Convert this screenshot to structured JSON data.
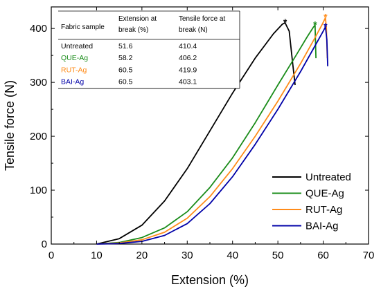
{
  "chart_data": {
    "type": "line",
    "xlabel": "Extension (%)",
    "ylabel": "Tensile force (N)",
    "xlim": [
      0,
      70
    ],
    "ylim": [
      0,
      440
    ],
    "xticks": [
      0,
      10,
      20,
      30,
      40,
      50,
      60,
      70
    ],
    "yticks": [
      0,
      100,
      200,
      300,
      400
    ],
    "grid": false,
    "legend_position": "bottom-right",
    "series": [
      {
        "name": "Untreated",
        "color": "#000000",
        "x": [
          10,
          15,
          20,
          25,
          30,
          35,
          40,
          45,
          49,
          51,
          51.6,
          52.5,
          53.2,
          53.8
        ],
        "y": [
          0,
          10,
          35,
          80,
          140,
          210,
          280,
          345,
          390,
          408,
          410.4,
          395,
          340,
          295
        ]
      },
      {
        "name": "QUE-Ag",
        "color": "#1a8c1a",
        "x": [
          10,
          15,
          20,
          25,
          30,
          35,
          40,
          45,
          50,
          54,
          56.5,
          57.8,
          58.2,
          58.4
        ],
        "y": [
          0,
          3,
          12,
          30,
          60,
          105,
          160,
          225,
          295,
          350,
          385,
          402,
          406.2,
          345
        ]
      },
      {
        "name": "RUT-Ag",
        "color": "#ff8c1a",
        "x": [
          10,
          15,
          20,
          25,
          30,
          35,
          40,
          45,
          50,
          55,
          58,
          59.8,
          60.5,
          60.7,
          60.9
        ],
        "y": [
          0,
          2,
          8,
          22,
          48,
          88,
          140,
          200,
          265,
          335,
          380,
          408,
          419.9,
          400,
          345
        ]
      },
      {
        "name": "BAI-Ag",
        "color": "#0000a8",
        "x": [
          10,
          15,
          20,
          25,
          30,
          35,
          40,
          45,
          50,
          55,
          58,
          60,
          60.5,
          60.8,
          61
        ],
        "y": [
          0,
          1,
          5,
          16,
          38,
          75,
          125,
          185,
          250,
          320,
          365,
          395,
          403.1,
          380,
          330
        ]
      }
    ],
    "break_markers": [
      {
        "series": "Untreated",
        "label": "*",
        "color": "#000000",
        "x": 51.6,
        "y": 410.4
      },
      {
        "series": "QUE-Ag",
        "label": "*",
        "color": "#1a8c1a",
        "x": 58.2,
        "y": 406.2
      },
      {
        "series": "RUT-Ag",
        "label": "*",
        "color": "#ff8c1a",
        "x": 60.5,
        "y": 419.9
      },
      {
        "series": "BAI-Ag",
        "label": "*",
        "color": "#0000a8",
        "x": 60.5,
        "y": 403.1
      }
    ],
    "table": {
      "headers": [
        "Fabric sample",
        "Extension at break (%)",
        "Tensile force at break (N)"
      ],
      "header_lines": [
        [
          "Fabric sample"
        ],
        [
          "Extension at",
          "break (%)"
        ],
        [
          "Tensile force at",
          "break (N)"
        ]
      ],
      "rows": [
        {
          "sample": "Untreated",
          "color": "#000000",
          "extension": "51.6",
          "force": "410.4"
        },
        {
          "sample": "QUE-Ag",
          "color": "#1a8c1a",
          "extension": "58.2",
          "force": "406.2"
        },
        {
          "sample": "RUT-Ag",
          "color": "#ff8c1a",
          "extension": "60.5",
          "force": "419.9"
        },
        {
          "sample": "BAI-Ag",
          "color": "#0000a8",
          "extension": "60.5",
          "force": "403.1"
        }
      ]
    }
  }
}
